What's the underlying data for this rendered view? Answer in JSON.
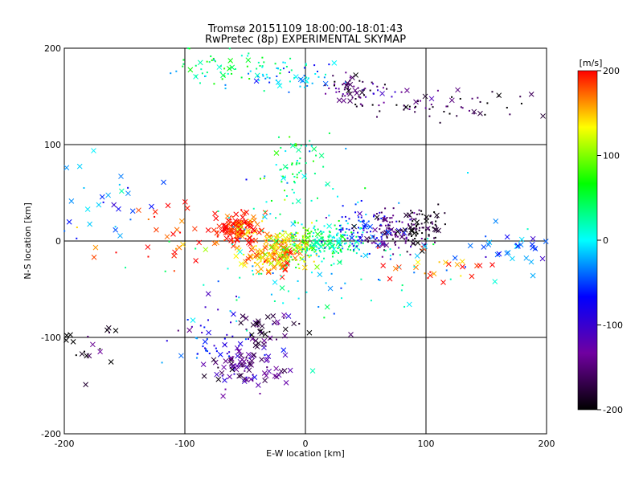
{
  "chart_data": {
    "type": "scatter",
    "title": "Tromsø 20151109 18:00:00-18:01:43",
    "subtitle": "RwPretec (8p) EXPERIMENTAL SKYMAP",
    "xlabel": "E-W location [km]",
    "ylabel": "N-S location [km]",
    "xlim": [
      -200,
      200
    ],
    "ylim": [
      -200,
      200
    ],
    "xticks": [
      "-200",
      "-100",
      "0",
      "100",
      "200"
    ],
    "xtick_values": [
      -200,
      -100,
      0,
      100,
      200
    ],
    "yticks": [
      "200",
      "100",
      "0",
      "-100",
      "-200"
    ],
    "ytick_values": [
      200,
      100,
      0,
      -100,
      -200
    ],
    "grid": true,
    "colorbar": {
      "label": "[m/s]",
      "range": [
        -200,
        200
      ],
      "ticks": [
        "200",
        "100",
        "0",
        "-100",
        "-200"
      ],
      "tick_values": [
        200,
        100,
        0,
        -100,
        -200
      ],
      "colors": [
        "#000000",
        "#7000a0",
        "#0000ff",
        "#00ffff",
        "#00ff00",
        "#ffff00",
        "#ff0000"
      ]
    },
    "markers": {
      "dot": "velocity vector origin (dot)",
      "cross": "x"
    },
    "clusters": [
      {
        "center": [
          -55,
          12
        ],
        "spread": [
          10,
          8
        ],
        "velocity": 190,
        "count": 140,
        "marker": "x"
      },
      {
        "center": [
          -25,
          -12
        ],
        "spread": [
          12,
          10
        ],
        "velocity": 160,
        "count": 140,
        "marker": "x"
      },
      {
        "center": [
          -8,
          -6
        ],
        "spread": [
          10,
          10
        ],
        "velocity": 110,
        "count": 110,
        "marker": "dot"
      },
      {
        "center": [
          15,
          0
        ],
        "spread": [
          15,
          10
        ],
        "velocity": 30,
        "count": 160,
        "marker": "dot"
      },
      {
        "center": [
          45,
          12
        ],
        "spread": [
          10,
          12
        ],
        "velocity": -60,
        "count": 80,
        "marker": "dot"
      },
      {
        "center": [
          70,
          10
        ],
        "spread": [
          12,
          12
        ],
        "velocity": -140,
        "count": 100,
        "marker": "dot"
      },
      {
        "center": [
          95,
          15
        ],
        "spread": [
          10,
          10
        ],
        "velocity": -190,
        "count": 90,
        "marker": "dot"
      },
      {
        "center": [
          -60,
          180
        ],
        "spread": [
          25,
          10
        ],
        "velocity": 20,
        "count": 70,
        "marker": "dot"
      },
      {
        "center": [
          -10,
          170
        ],
        "spread": [
          20,
          8
        ],
        "velocity": -20,
        "count": 50,
        "marker": "dot"
      },
      {
        "center": [
          40,
          155
        ],
        "spread": [
          15,
          8
        ],
        "velocity": -150,
        "count": 70,
        "marker": "dot"
      },
      {
        "center": [
          120,
          140
        ],
        "spread": [
          40,
          8
        ],
        "velocity": -170,
        "count": 60,
        "marker": "dot"
      },
      {
        "center": [
          -45,
          -130
        ],
        "spread": [
          15,
          12
        ],
        "velocity": -140,
        "count": 90,
        "marker": "x"
      },
      {
        "center": [
          -80,
          -100
        ],
        "spread": [
          20,
          20
        ],
        "velocity": -80,
        "count": 50,
        "marker": "dot"
      },
      {
        "center": [
          -30,
          -90
        ],
        "spread": [
          15,
          10
        ],
        "velocity": -170,
        "count": 40,
        "marker": "x"
      },
      {
        "center": [
          -5,
          80
        ],
        "spread": [
          12,
          20
        ],
        "velocity": 40,
        "count": 60,
        "marker": "dot"
      },
      {
        "center": [
          -170,
          40
        ],
        "spread": [
          20,
          25
        ],
        "velocity": -30,
        "count": 30,
        "marker": "x"
      },
      {
        "center": [
          -120,
          10
        ],
        "spread": [
          25,
          20
        ],
        "velocity": 190,
        "count": 30,
        "marker": "x"
      },
      {
        "center": [
          160,
          -10
        ],
        "spread": [
          25,
          15
        ],
        "velocity": -40,
        "count": 35,
        "marker": "x"
      },
      {
        "center": [
          100,
          -25
        ],
        "spread": [
          25,
          10
        ],
        "velocity": 185,
        "count": 25,
        "marker": "x"
      },
      {
        "center": [
          -180,
          -115
        ],
        "spread": [
          15,
          15
        ],
        "velocity": -200,
        "count": 20,
        "marker": "x"
      },
      {
        "center": [
          0,
          -20
        ],
        "spread": [
          60,
          40
        ],
        "velocity": 0,
        "count": 120,
        "marker": "dot"
      }
    ]
  }
}
